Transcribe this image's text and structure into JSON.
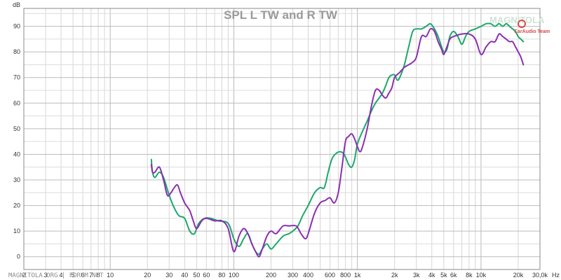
{
  "chart_data": {
    "type": "line",
    "title": "SPL L TW and R TW",
    "ylabel": "dB",
    "xlabel": "Hz",
    "x_scale": "log",
    "xlim": [
      2,
      30000
    ],
    "ylim": [
      -5,
      97
    ],
    "grid": true,
    "x_ticks": [
      {
        "v": 2,
        "label": "2"
      },
      {
        "v": 3,
        "label": "3"
      },
      {
        "v": 4,
        "label": "4"
      },
      {
        "v": 5,
        "label": "5"
      },
      {
        "v": 6,
        "label": "6"
      },
      {
        "v": 7,
        "label": "7"
      },
      {
        "v": 8,
        "label": "8"
      },
      {
        "v": 10,
        "label": "10"
      },
      {
        "v": 20,
        "label": "20"
      },
      {
        "v": 30,
        "label": "30"
      },
      {
        "v": 40,
        "label": "40"
      },
      {
        "v": 50,
        "label": "50"
      },
      {
        "v": 60,
        "label": "60"
      },
      {
        "v": 80,
        "label": "80"
      },
      {
        "v": 100,
        "label": "100"
      },
      {
        "v": 200,
        "label": "200"
      },
      {
        "v": 300,
        "label": "300"
      },
      {
        "v": 400,
        "label": "400"
      },
      {
        "v": 600,
        "label": "600"
      },
      {
        "v": 800,
        "label": "800"
      },
      {
        "v": 1000,
        "label": "1k"
      },
      {
        "v": 2000,
        "label": "2k"
      },
      {
        "v": 3000,
        "label": "3k"
      },
      {
        "v": 4000,
        "label": "4k"
      },
      {
        "v": 5000,
        "label": "5k"
      },
      {
        "v": 6000,
        "label": "6k"
      },
      {
        "v": 8000,
        "label": "8k"
      },
      {
        "v": 10000,
        "label": "10k"
      },
      {
        "v": 20000,
        "label": "20k"
      },
      {
        "v": 30000,
        "label": "30,0k"
      }
    ],
    "y_ticks": [
      0,
      10,
      20,
      30,
      40,
      50,
      60,
      70,
      80,
      90
    ],
    "series": [
      {
        "color": "#1aa86a",
        "points": [
          [
            21.5,
            38
          ],
          [
            22,
            33
          ],
          [
            23,
            31
          ],
          [
            25,
            33
          ],
          [
            27,
            31
          ],
          [
            30,
            24
          ],
          [
            33,
            19
          ],
          [
            36,
            16
          ],
          [
            40,
            15
          ],
          [
            44,
            10
          ],
          [
            48,
            9
          ],
          [
            52,
            13
          ],
          [
            58,
            15
          ],
          [
            65,
            15
          ],
          [
            75,
            14
          ],
          [
            90,
            13
          ],
          [
            100,
            7
          ],
          [
            110,
            4
          ],
          [
            120,
            7
          ],
          [
            130,
            9
          ],
          [
            140,
            5
          ],
          [
            150,
            2
          ],
          [
            160,
            1
          ],
          [
            170,
            3
          ],
          [
            185,
            5
          ],
          [
            200,
            3
          ],
          [
            220,
            5
          ],
          [
            250,
            8
          ],
          [
            280,
            9
          ],
          [
            300,
            10
          ],
          [
            330,
            12
          ],
          [
            360,
            16
          ],
          [
            400,
            20
          ],
          [
            450,
            25
          ],
          [
            500,
            27
          ],
          [
            540,
            27
          ],
          [
            580,
            33
          ],
          [
            620,
            38
          ],
          [
            660,
            40
          ],
          [
            720,
            41
          ],
          [
            780,
            40
          ],
          [
            850,
            36
          ],
          [
            900,
            35
          ],
          [
            950,
            38
          ],
          [
            1000,
            44
          ],
          [
            1100,
            49
          ],
          [
            1200,
            53
          ],
          [
            1300,
            57
          ],
          [
            1400,
            60
          ],
          [
            1500,
            62
          ],
          [
            1600,
            64
          ],
          [
            1700,
            67
          ],
          [
            1800,
            70
          ],
          [
            1900,
            71
          ],
          [
            2000,
            71
          ],
          [
            2100,
            69
          ],
          [
            2200,
            70
          ],
          [
            2400,
            75
          ],
          [
            2600,
            82
          ],
          [
            2800,
            88
          ],
          [
            3000,
            89
          ],
          [
            3300,
            89
          ],
          [
            3600,
            90
          ],
          [
            3900,
            91
          ],
          [
            4200,
            89
          ],
          [
            4500,
            86
          ],
          [
            4800,
            82
          ],
          [
            5000,
            80
          ],
          [
            5300,
            81
          ],
          [
            5600,
            86
          ],
          [
            6000,
            88
          ],
          [
            6500,
            86
          ],
          [
            7000,
            83
          ],
          [
            7500,
            86
          ],
          [
            8000,
            88
          ],
          [
            9000,
            89
          ],
          [
            10000,
            90
          ],
          [
            11000,
            91
          ],
          [
            12000,
            91
          ],
          [
            13000,
            90
          ],
          [
            14000,
            91
          ],
          [
            15000,
            90
          ],
          [
            16000,
            91
          ],
          [
            17000,
            90
          ],
          [
            18000,
            89
          ],
          [
            19000,
            88
          ],
          [
            20000,
            86
          ],
          [
            21000,
            85
          ],
          [
            22000,
            84
          ]
        ]
      },
      {
        "color": "#8a2fb0",
        "points": [
          [
            21.5,
            36
          ],
          [
            22,
            33
          ],
          [
            23,
            33
          ],
          [
            25,
            35
          ],
          [
            27,
            30
          ],
          [
            29,
            24
          ],
          [
            31,
            25
          ],
          [
            33,
            27
          ],
          [
            35,
            28
          ],
          [
            37,
            25
          ],
          [
            40,
            21
          ],
          [
            44,
            18
          ],
          [
            47,
            14
          ],
          [
            50,
            11
          ],
          [
            55,
            14
          ],
          [
            60,
            15
          ],
          [
            70,
            14
          ],
          [
            80,
            14
          ],
          [
            90,
            11
          ],
          [
            100,
            2
          ],
          [
            110,
            8
          ],
          [
            120,
            11
          ],
          [
            130,
            9
          ],
          [
            140,
            5
          ],
          [
            150,
            2
          ],
          [
            160,
            0
          ],
          [
            170,
            3
          ],
          [
            185,
            8
          ],
          [
            200,
            10
          ],
          [
            220,
            9
          ],
          [
            250,
            12
          ],
          [
            280,
            12
          ],
          [
            320,
            12
          ],
          [
            350,
            9
          ],
          [
            380,
            7
          ],
          [
            400,
            9
          ],
          [
            450,
            17
          ],
          [
            500,
            21
          ],
          [
            550,
            22
          ],
          [
            600,
            23
          ],
          [
            650,
            21
          ],
          [
            700,
            25
          ],
          [
            750,
            35
          ],
          [
            800,
            45
          ],
          [
            850,
            47
          ],
          [
            900,
            48
          ],
          [
            950,
            46
          ],
          [
            1000,
            43
          ],
          [
            1050,
            41
          ],
          [
            1100,
            43
          ],
          [
            1200,
            50
          ],
          [
            1300,
            59
          ],
          [
            1400,
            65
          ],
          [
            1500,
            65
          ],
          [
            1600,
            63
          ],
          [
            1700,
            62
          ],
          [
            1800,
            64
          ],
          [
            1900,
            66
          ],
          [
            2000,
            70
          ],
          [
            2200,
            72
          ],
          [
            2400,
            74
          ],
          [
            2600,
            75
          ],
          [
            2800,
            76
          ],
          [
            3000,
            78
          ],
          [
            3300,
            86
          ],
          [
            3600,
            86
          ],
          [
            3900,
            89
          ],
          [
            4200,
            88
          ],
          [
            4500,
            84
          ],
          [
            4800,
            81
          ],
          [
            5000,
            79
          ],
          [
            5300,
            82
          ],
          [
            5600,
            85
          ],
          [
            6000,
            86
          ],
          [
            7000,
            87
          ],
          [
            8000,
            87
          ],
          [
            9000,
            85
          ],
          [
            10000,
            79
          ],
          [
            11000,
            82
          ],
          [
            12000,
            84
          ],
          [
            13000,
            84
          ],
          [
            14000,
            87
          ],
          [
            15000,
            86
          ],
          [
            16000,
            85
          ],
          [
            17000,
            84
          ],
          [
            18000,
            84
          ],
          [
            19000,
            82
          ],
          [
            20000,
            80
          ],
          [
            21000,
            78
          ],
          [
            22000,
            75
          ]
        ]
      }
    ]
  },
  "watermark": {
    "bottom_text": "MAGNITOLA.ORG | FORUM.NET",
    "logo_text": "MAGNITOLA",
    "logo_sub": "CarAudio Team"
  }
}
